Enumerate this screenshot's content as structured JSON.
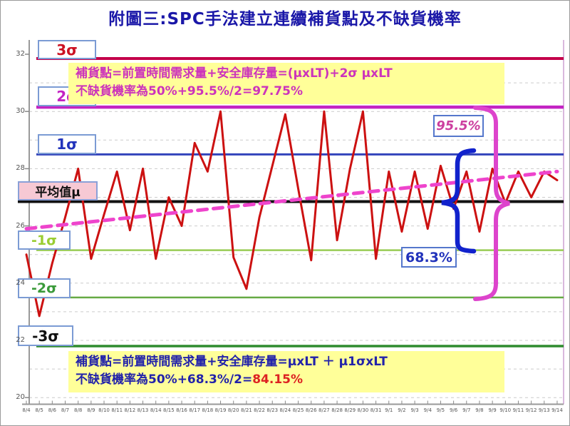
{
  "chart_data": {
    "type": "line",
    "title": "附圖三:SPC手法建立連續補貨點及不缺貨機率",
    "categories": [
      "8/4",
      "8/5",
      "8/6",
      "8/7",
      "8/8",
      "8/9",
      "8/10",
      "8/11",
      "8/12",
      "8/13",
      "8/14",
      "8/15",
      "8/16",
      "8/17",
      "8/18",
      "8/19",
      "8/20",
      "8/21",
      "8/22",
      "8/23",
      "8/24",
      "8/25",
      "8/26",
      "8/27",
      "8/28",
      "8/29",
      "8/30",
      "8/31",
      "9/1",
      "9/2",
      "9/3",
      "9/4",
      "9/5",
      "9/6",
      "9/7",
      "9/8",
      "9/9",
      "9/10",
      "9/11",
      "9/12",
      "9/13",
      "9/14"
    ],
    "series": [
      {
        "name": "daily-demand",
        "color": "#cc1111",
        "values": [
          25.0,
          22.85,
          24.7,
          26.3,
          28.0,
          24.85,
          26.4,
          27.9,
          25.85,
          28.0,
          24.85,
          27.0,
          26.0,
          28.9,
          27.9,
          30.0,
          24.9,
          23.8,
          26.3,
          28.1,
          29.9,
          27.3,
          24.8,
          30.0,
          25.5,
          28.0,
          30.0,
          24.85,
          27.9,
          25.8,
          27.9,
          25.9,
          28.1,
          26.6,
          27.9,
          25.8,
          28.0,
          26.8,
          27.9,
          27.0,
          27.9,
          27.6
        ]
      }
    ],
    "trend": {
      "name": "trend-dashed",
      "color": "#ee44cc",
      "start_value": 25.9,
      "end_value": 27.9
    },
    "sigma_lines": [
      {
        "label": "3σ",
        "value": 31.85,
        "color": "#c4004a",
        "width": 4
      },
      {
        "label": "2σ",
        "value": 30.15,
        "color": "#c323c3",
        "width": 4.5
      },
      {
        "label": "1σ",
        "value": 28.5,
        "color": "#3344bb",
        "width": 3
      },
      {
        "label": "平均值μ",
        "value": 26.85,
        "color": "#111111",
        "width": 4
      },
      {
        "label": "-1σ",
        "value": 25.15,
        "color": "#99cc55",
        "width": 2.5
      },
      {
        "label": "-2σ",
        "value": 23.5,
        "color": "#66aa44",
        "width": 2.5
      },
      {
        "label": "-3σ",
        "value": 21.8,
        "color": "#2e8b2e",
        "width": 3.5
      }
    ],
    "y_ticks": [
      32,
      30,
      28,
      26,
      24,
      22,
      20
    ],
    "ylim": [
      20,
      32.5
    ],
    "gridline_values": [
      31,
      30,
      29,
      28,
      27,
      26,
      25,
      24,
      23,
      22,
      21,
      20
    ],
    "grid": "dashed",
    "annotations": [
      {
        "text": "95.5%",
        "color": "#cc3f9f"
      },
      {
        "text": "68.3%",
        "color": "#2233bb"
      }
    ],
    "braces": {
      "outer_color": "#dd44cc",
      "inner_color": "#1122cc"
    },
    "formula_boxes": {
      "top": {
        "line1": "補貨點=前置時間需求量+安全庫存量=(μxLT)+2σ μxLT",
        "line2": "不缺貨機率為50%+95.5%/2=97.75%",
        "text_color": "#cc33bb",
        "bg_color": "#ffff99"
      },
      "bottom": {
        "line1": "補貨點=前置時間需求量+安全庫存量=μxLT ＋ μ1σxLT",
        "line2_prefix": "不缺貨機率為50%+68.3%/2=",
        "line2_value": "84.15%",
        "text_color": "#2222aa",
        "value_color": "#dd2222",
        "bg_color": "#ffff99"
      }
    }
  }
}
